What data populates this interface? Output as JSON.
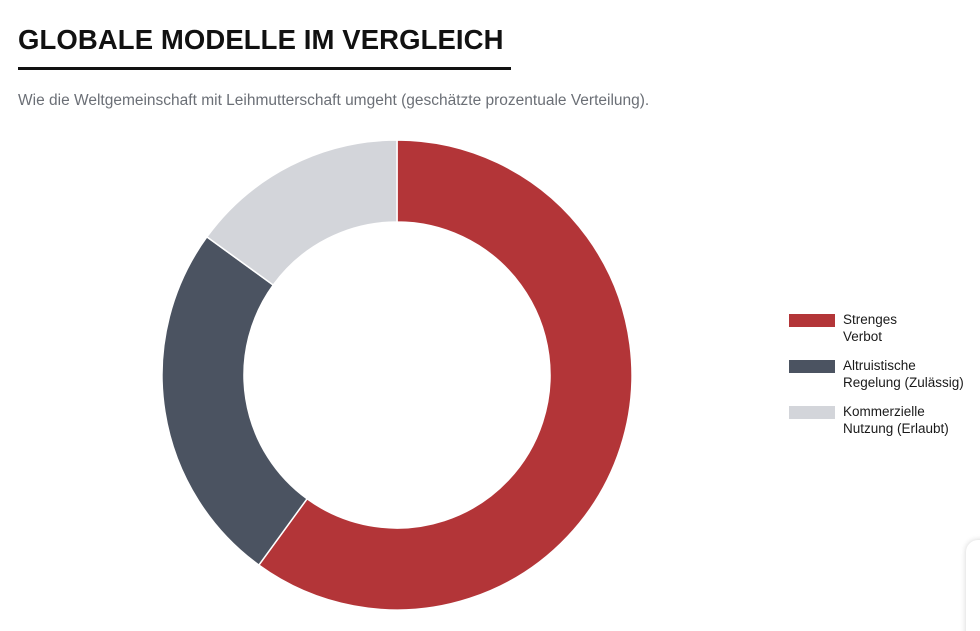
{
  "header": {
    "title": "GLOBALE MODELLE IM VERGLEICH",
    "subtitle": "Wie die Weltgemeinschaft mit Leihmutterschaft umgeht (geschätzte prozentuale Verteilung)."
  },
  "chart_data": {
    "type": "pie",
    "variant": "donut",
    "title": "GLOBALE MODELLE IM VERGLEICH",
    "subtitle": "Wie die Weltgemeinschaft mit Leihmutterschaft umgeht (geschätzte prozentuale Verteilung).",
    "categories": [
      "Strenges Verbot",
      "Altruistische Regelung (Zulässig)",
      "Kommerzielle Nutzung (Erlaubt)"
    ],
    "values": [
      60,
      25,
      15
    ],
    "colors": [
      "#b33538",
      "#4b5361",
      "#d3d5da"
    ],
    "legend_position": "right",
    "legend": [
      {
        "line1": "Strenges",
        "line2": "Verbot"
      },
      {
        "line1": "Altruistische",
        "line2": "Regelung (Zulässig)"
      },
      {
        "line1": "Kommerzielle",
        "line2": "Nutzung (Erlaubt)"
      }
    ]
  }
}
